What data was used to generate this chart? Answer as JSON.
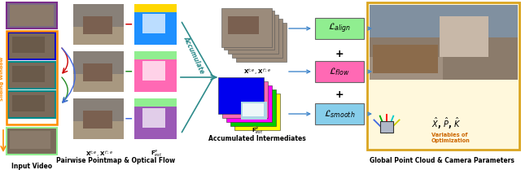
{
  "frame_colors": [
    "#7B2D8B",
    "#FF8C00",
    "#008B8B",
    "#008B8B",
    "#90EE90"
  ],
  "sliding_border": "#FF8C00",
  "sliding_text_color": "#FF8C00",
  "arrow_curved_colors": [
    "#CC0000",
    "#228B22",
    "#4169E1"
  ],
  "minus_colors": [
    "#CC0000",
    "#228B22",
    "#4169E1"
  ],
  "of_row_colors": [
    "#1E90FF",
    "#FF69B4",
    "#9B59B6"
  ],
  "of_top_stripes": [
    "#FFD700",
    "#90EE90",
    "#90EE90"
  ],
  "accumulate_arrow_color": "#2E8B8B",
  "accumulate_text": "Accumulate",
  "acc_stack_gray": "#A89880",
  "acc_stack_colors": [
    "#FFFF00",
    "#00CC00",
    "#FF00FF",
    "#00FFFF",
    "#0000EE"
  ],
  "acc_flow_top_color": "#0000EE",
  "loss_colors": [
    "#90EE90",
    "#FF69B4",
    "#87CEEB"
  ],
  "loss_labels": [
    "$\\mathcal{L}_{align}$",
    "$\\mathcal{L}_{flow}$",
    "$\\mathcal{L}_{smooth}$"
  ],
  "plus_color": "#333333",
  "arrow_color": "#4488CC",
  "global_bg": "#FFF8DC",
  "global_border": "#DAA520",
  "vars_text": "$\\hat{X}$, $\\hat{P}$, $\\hat{K}$",
  "vars_sub": "Variables of\nOptimization",
  "vars_color": "#CC6600",
  "section_labels": [
    "Input Video",
    "Pairwise Pointmap & Optical Flow",
    "Accumulated Intermediates",
    "Global Point Cloud & Camera Parameters"
  ],
  "xt_label": "$\\mathbf{X}^{t;e}$, $\\mathbf{X}^{t^{\\prime};e}$",
  "fest_label": "$\\mathbf{F}^{e}_{est}$",
  "xt_acc_label": "$\\mathbf{X}^{t;e}$, $\\mathbf{X}^{t^{\\prime};e}$",
  "fest_acc_label": "$\\mathbf{F}^{e}_{est}$"
}
